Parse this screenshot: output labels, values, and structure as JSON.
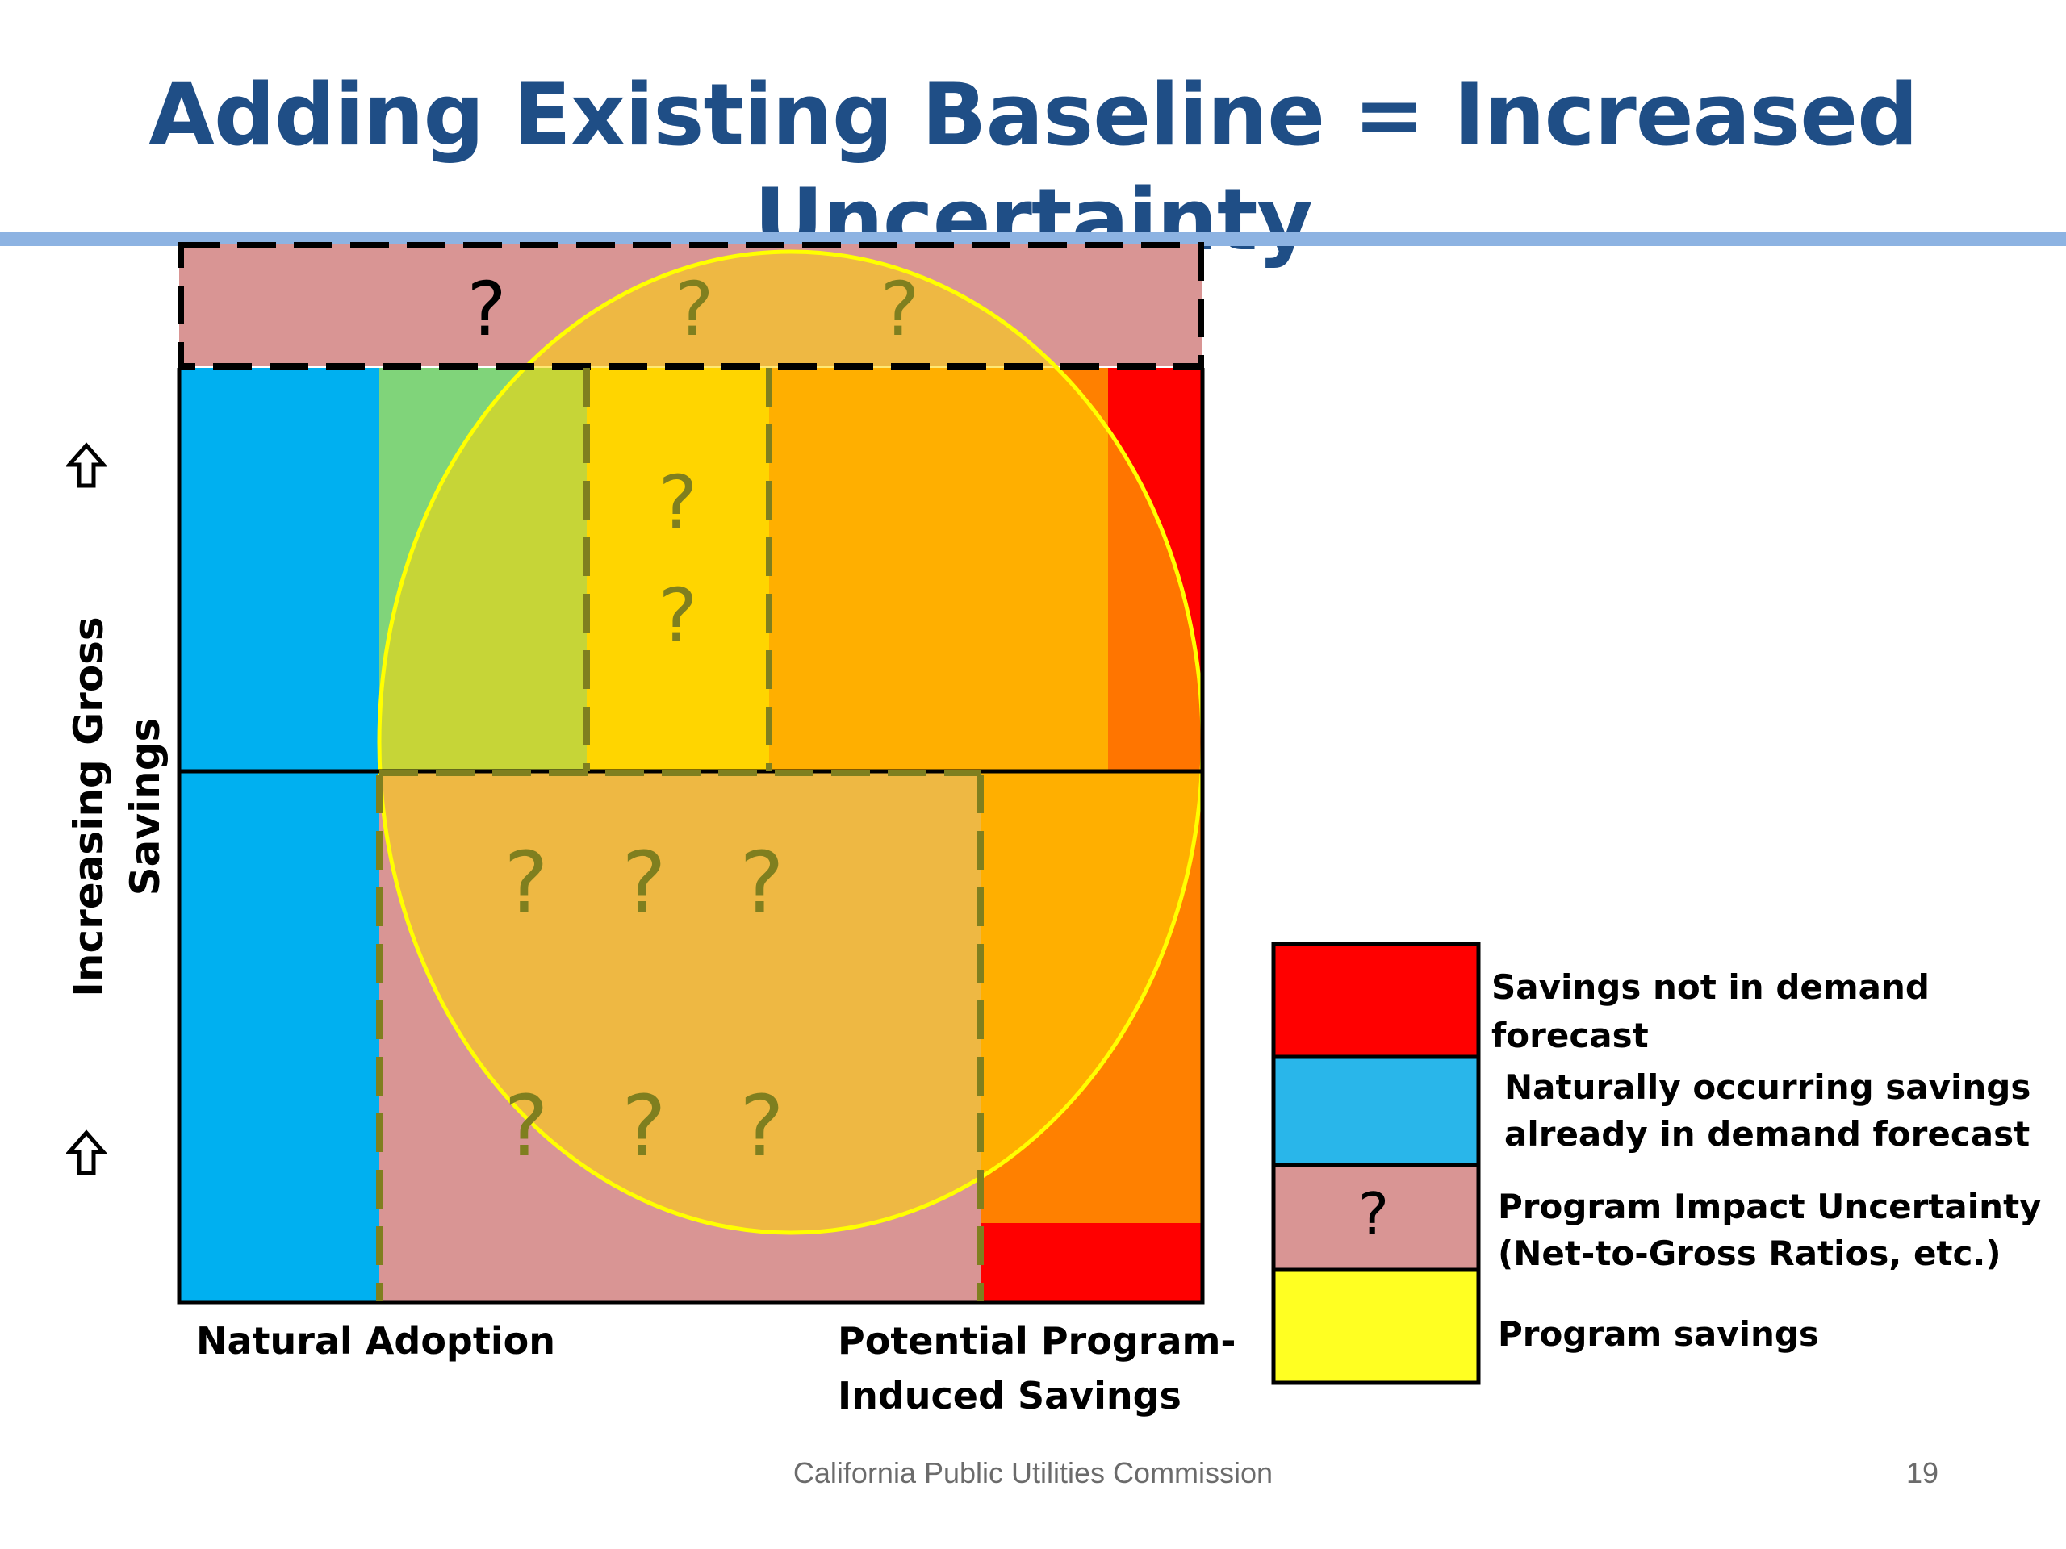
{
  "title": "Adding Existing Baseline = Increased Uncertainty",
  "y_axis_label": "Increasing Gross Savings",
  "x_labels": {
    "left": "Natural Adoption",
    "right_line1": "Potential Program-",
    "right_line2": "Induced Savings"
  },
  "question_mark": "?",
  "legend": {
    "items": [
      {
        "label_lines": [
          "Savings not in demand forecast"
        ],
        "color": "#ff0000",
        "mark": ""
      },
      {
        "label_lines": [
          "Naturally occurring savings",
          "already in demand forecast"
        ],
        "color": "#29b6ea",
        "mark": ""
      },
      {
        "label_lines": [
          "Program Impact Uncertainty",
          "(Net-to-Gross Ratios, etc.)"
        ],
        "color": "#d99594",
        "mark": "?"
      },
      {
        "label_lines": [
          "Program savings"
        ],
        "color": "#ffff22",
        "mark": ""
      }
    ]
  },
  "colors": {
    "red": "#ff0000",
    "blue": "#00b0f0",
    "pink": "#d99594",
    "orange": "#ff8000",
    "green": "#80d47a",
    "overlay_yellow": "#ffd600",
    "ellipse_stroke": "#ffff00",
    "dash_olive": "#7f7f1f",
    "title_blue": "#1f4e86",
    "rule_blue": "#8db3e2"
  },
  "footer": {
    "organization": "California Public Utilities Commission",
    "page_number": "19"
  }
}
